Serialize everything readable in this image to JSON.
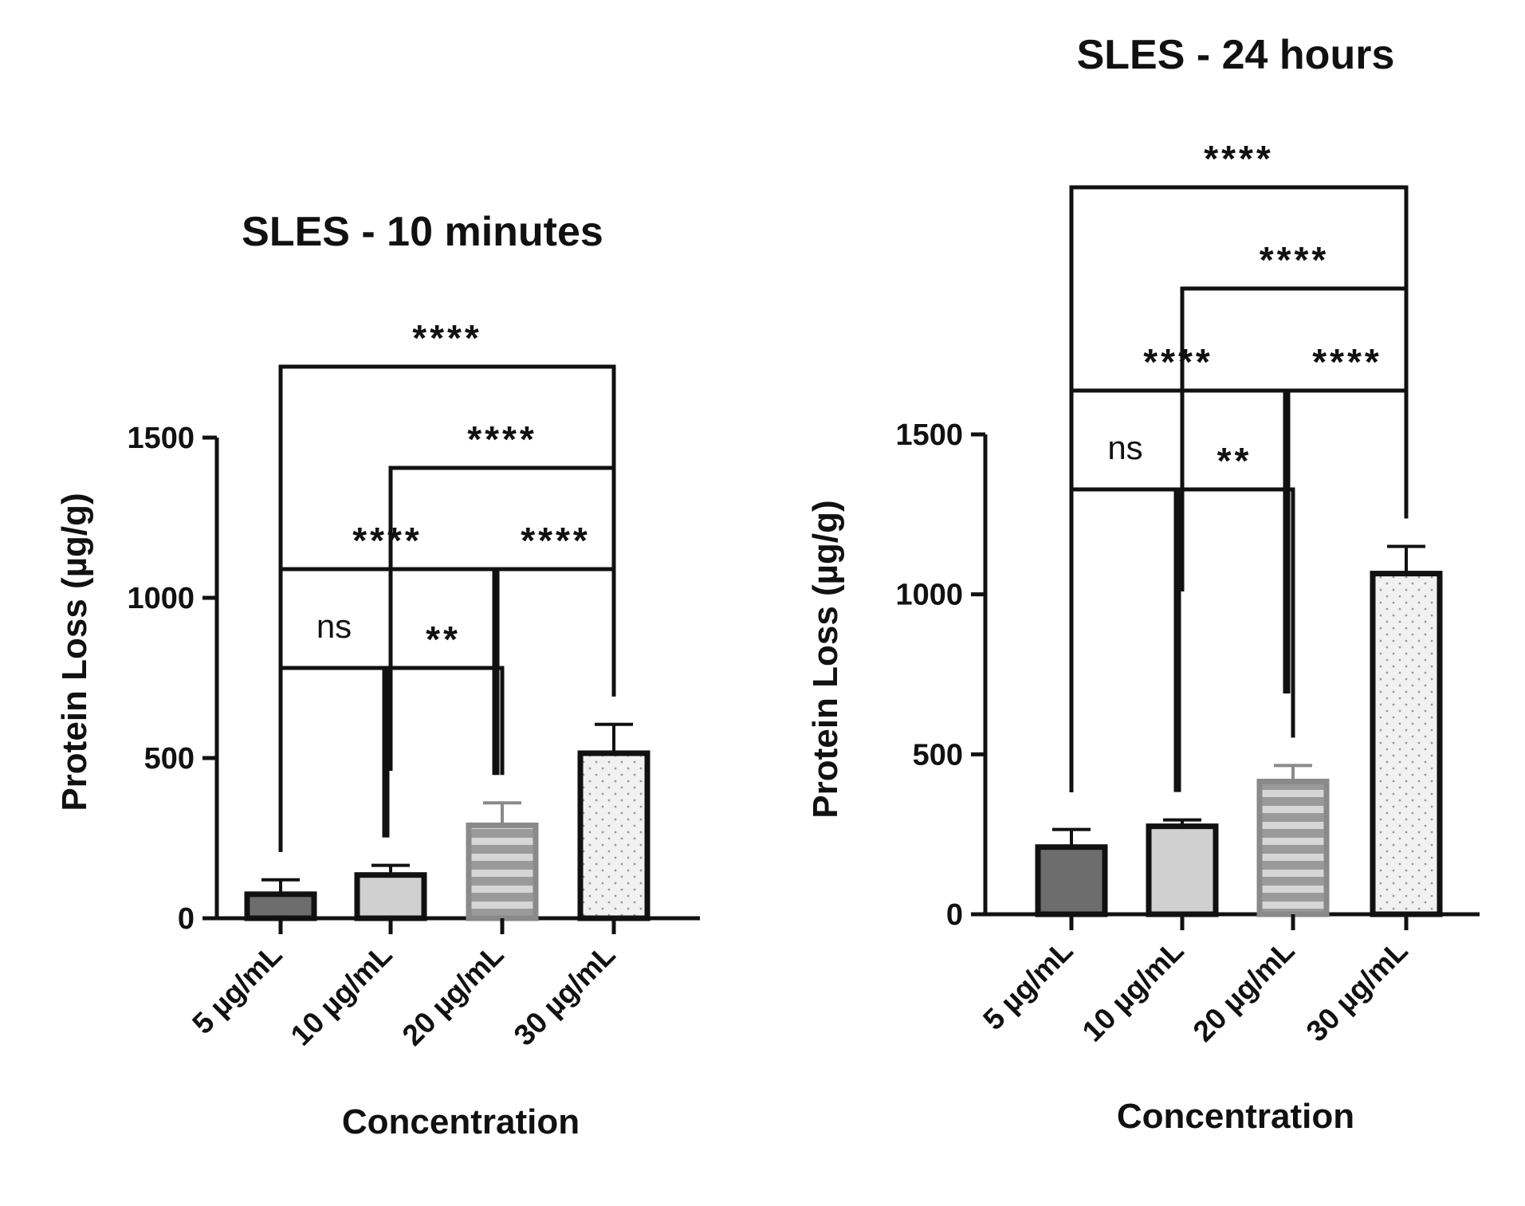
{
  "chart_data": [
    {
      "type": "bar",
      "title": "SLES - 10 minutes",
      "xlabel": "Concentration",
      "ylabel": "Protein Loss (µg/g)",
      "ylim": [
        0,
        1500
      ],
      "yticks": [
        0,
        500,
        1000,
        1500
      ],
      "categories": [
        "5 µg/mL",
        "10 µg/mL",
        "20 µg/mL",
        "30 µg/mL"
      ],
      "values": [
        75,
        135,
        290,
        515
      ],
      "errors": [
        45,
        30,
        70,
        90
      ],
      "bar_fills": [
        "#6d6d6d",
        "#d0d0d0",
        "stripes",
        "dots"
      ],
      "significance": [
        {
          "from": 0,
          "to": 1,
          "label": "ns"
        },
        {
          "from": 1,
          "to": 2,
          "label": "**"
        },
        {
          "from": 0,
          "to": 2,
          "label": "****"
        },
        {
          "from": 2,
          "to": 3,
          "label": "****"
        },
        {
          "from": 1,
          "to": 3,
          "label": "****"
        },
        {
          "from": 0,
          "to": 3,
          "label": "****"
        }
      ]
    },
    {
      "type": "bar",
      "title": "SLES - 24 hours",
      "xlabel": "Concentration",
      "ylabel": "Protein Loss (µg/g)",
      "ylim": [
        0,
        1500
      ],
      "yticks": [
        0,
        500,
        1000,
        1500
      ],
      "categories": [
        "5 µg/mL",
        "10 µg/mL",
        "20 µg/mL",
        "30 µg/mL"
      ],
      "values": [
        210,
        275,
        415,
        1065
      ],
      "errors": [
        55,
        20,
        50,
        85
      ],
      "bar_fills": [
        "#6d6d6d",
        "#d0d0d0",
        "stripes",
        "dots"
      ],
      "significance": [
        {
          "from": 0,
          "to": 1,
          "label": "ns"
        },
        {
          "from": 1,
          "to": 2,
          "label": "**"
        },
        {
          "from": 0,
          "to": 2,
          "label": "****"
        },
        {
          "from": 2,
          "to": 3,
          "label": "****"
        },
        {
          "from": 1,
          "to": 3,
          "label": "****"
        },
        {
          "from": 0,
          "to": 3,
          "label": "****"
        }
      ]
    }
  ]
}
